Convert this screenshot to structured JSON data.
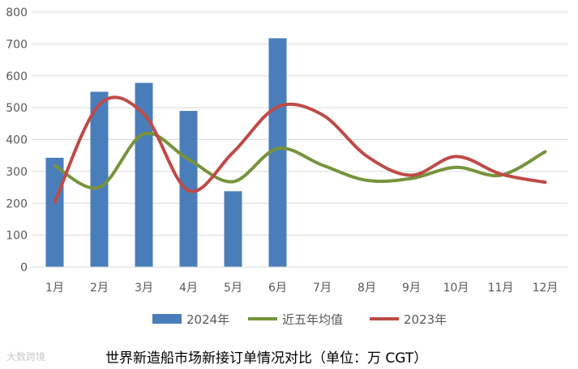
{
  "watermark": "大数跨境",
  "caption": "世界新造船市场新接订单情况对比（单位：万 CGT）",
  "chart_data": {
    "type": "bar",
    "categories": [
      "1月",
      "2月",
      "3月",
      "4月",
      "5月",
      "6月",
      "7月",
      "8月",
      "9月",
      "10月",
      "11月",
      "12月"
    ],
    "ylim": [
      0,
      800
    ],
    "yticks": [
      0,
      100,
      200,
      300,
      400,
      500,
      600,
      700,
      800
    ],
    "grid": true,
    "legend_position": "bottom",
    "series": [
      {
        "name": "2024年",
        "type": "bar",
        "color": "#4a7ebb",
        "values": [
          343,
          550,
          578,
          490,
          238,
          718,
          null,
          null,
          null,
          null,
          null,
          null
        ]
      },
      {
        "name": "近五年均值",
        "type": "line",
        "color": "#77933c",
        "values": [
          318,
          250,
          418,
          338,
          268,
          372,
          320,
          272,
          278,
          313,
          288,
          362
        ]
      },
      {
        "name": "2023年",
        "type": "line",
        "color": "#be4b48",
        "values": [
          203,
          510,
          480,
          240,
          360,
          503,
          478,
          348,
          288,
          347,
          292,
          266
        ]
      }
    ]
  }
}
